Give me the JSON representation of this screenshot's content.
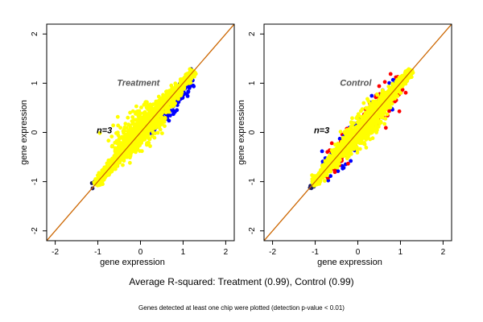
{
  "figure": {
    "summary": "Average R-squared: Treatment (0.99), Control (0.99)",
    "footnote": "Genes detected at least one chip were plotted (detection p-value < 0.01)"
  },
  "colors": {
    "bulk_points": "#ffff00",
    "treatment_outliers": "#0000ff",
    "control_outliers_red": "#ff0000",
    "control_outliers_blue": "#0000ff",
    "identity_line": "#cc6600",
    "axes": "#000000"
  },
  "chart_data": [
    {
      "type": "scatter",
      "title": "Treatment",
      "annotation": "n=3",
      "xlabel": "gene expression",
      "ylabel": "gene expression",
      "xlim": [
        -2.2,
        2.2
      ],
      "ylim": [
        -2.2,
        2.2
      ],
      "xticks": [
        "-2",
        "-1",
        "0",
        "1",
        "2"
      ],
      "yticks": [
        "-2",
        "-1",
        "0",
        "1",
        "2"
      ],
      "reference_line": "y = x",
      "grid": false,
      "point_cloud": {
        "x_range": [
          -1.1,
          1.3
        ],
        "y_range": [
          -1.2,
          1.3
        ],
        "r_squared": 0.99
      },
      "series": [
        {
          "color": "yellow",
          "role": "bulk"
        },
        {
          "color": "blue",
          "role": "outliers below diagonal"
        }
      ]
    },
    {
      "type": "scatter",
      "title": "Control",
      "annotation": "n=3",
      "xlabel": "gene expression",
      "ylabel": "gene expression",
      "xlim": [
        -2.2,
        2.2
      ],
      "ylim": [
        -2.2,
        2.2
      ],
      "xticks": [
        "-2",
        "-1",
        "0",
        "1",
        "2"
      ],
      "yticks": [
        "-2",
        "-1",
        "0",
        "1",
        "2"
      ],
      "reference_line": "y = x",
      "grid": false,
      "point_cloud": {
        "x_range": [
          -1.1,
          1.3
        ],
        "y_range": [
          -1.2,
          1.3
        ],
        "r_squared": 0.99
      },
      "series": [
        {
          "color": "yellow",
          "role": "bulk"
        },
        {
          "color": "red",
          "role": "outliers"
        },
        {
          "color": "blue",
          "role": "outliers"
        }
      ]
    }
  ]
}
